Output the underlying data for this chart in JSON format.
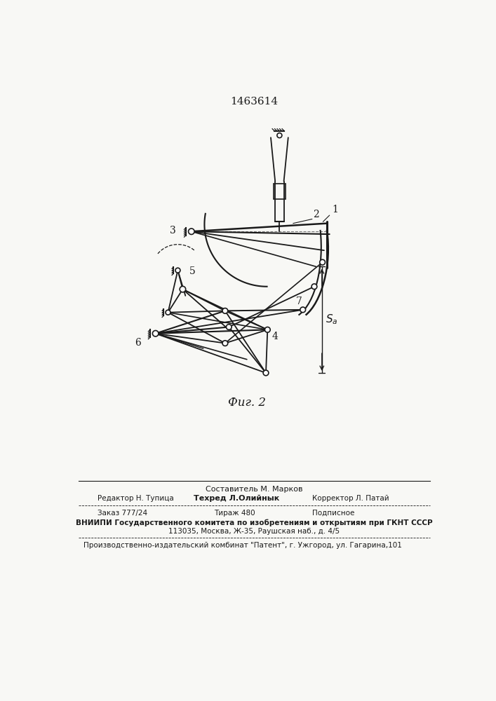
{
  "title": "1463614",
  "fig_label": "Фиг. 2",
  "background_color": "#f8f8f5",
  "line_color": "#1a1a1a",
  "footer": {
    "line1_center": "Составитель М. Марков",
    "line2_left": "Редактор Н. Тупица",
    "line2_center": "Техред Л.Олийнык",
    "line2_right": "Корректор Л. Патай",
    "line3_left": "Заказ 777/24",
    "line3_center": "Тираж 480",
    "line3_right": "Подписное",
    "line4": "ВНИИПИ Государственного комитета по изобретениям и открытиям при ГКНТ СССР",
    "line5": "113035, Москва, Ж-35, Раушская наб., д. 4/5",
    "line6": "Производственно-издательский комбинат \"Патент\", г. Ужгород, ул. Гагарина,101"
  }
}
